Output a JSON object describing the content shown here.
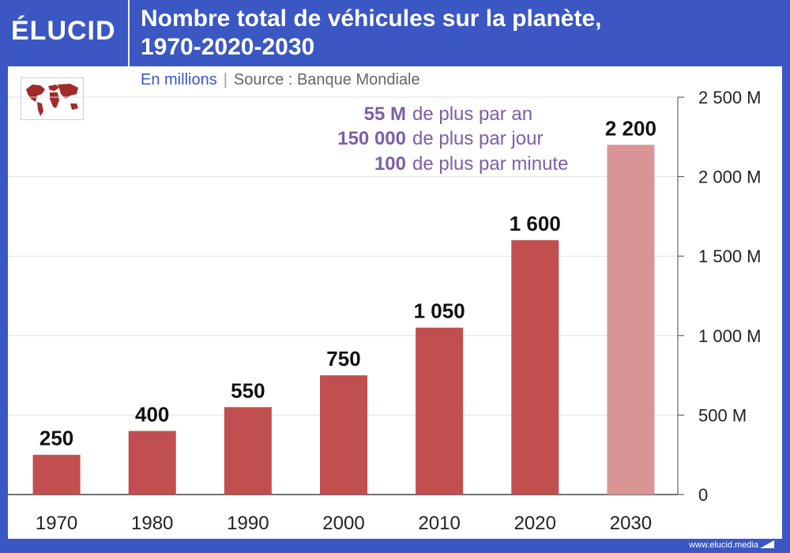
{
  "header": {
    "logo": "ÉLUCID",
    "title_line1": "Nombre total de véhicules sur la planète,",
    "title_line2": "1970-2020-2030"
  },
  "subtitle": {
    "units": "En millions",
    "separator": "|",
    "source": "Source : Banque Mondiale"
  },
  "annotations": [
    {
      "value": "55 M",
      "text": "de plus par an"
    },
    {
      "value": "150 000",
      "text": "de plus par jour"
    },
    {
      "value": "100",
      "text": "de plus par minute"
    }
  ],
  "footer": {
    "url": "www.elucid.media"
  },
  "colors": {
    "header_bg": "#3a57c4",
    "bar": "#c14f4f",
    "bar_projection": "#d99595",
    "annotation": "#7d5ea8"
  },
  "icons": {
    "map": "world-map-icon",
    "brand": "elucid-mark-icon"
  },
  "chart_data": {
    "type": "bar",
    "categories": [
      "1970",
      "1980",
      "1990",
      "2000",
      "2010",
      "2020",
      "2030"
    ],
    "values": [
      250,
      400,
      550,
      750,
      1050,
      1600,
      2200
    ],
    "value_labels": [
      "250",
      "400",
      "550",
      "750",
      "1 050",
      "1 600",
      "2 200"
    ],
    "projected": [
      false,
      false,
      false,
      false,
      false,
      false,
      true
    ],
    "ylim": [
      0,
      2500
    ],
    "yticks": [
      0,
      500,
      1000,
      1500,
      2000,
      2500
    ],
    "ytick_labels": [
      "0",
      "500 M",
      "1 000 M",
      "1 500 M",
      "2 000 M",
      "2 500 M"
    ],
    "yaxis_position": "right",
    "grid": true
  }
}
